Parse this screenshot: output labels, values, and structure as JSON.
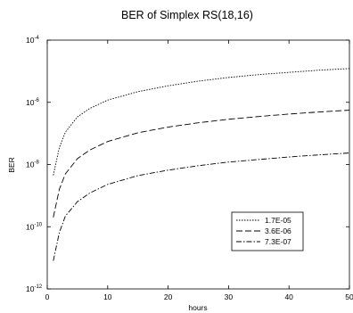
{
  "chart_data": {
    "type": "line",
    "title": "BER of Simplex RS(18,16)",
    "xlabel": "hours",
    "ylabel": "BER",
    "xlim": [
      0,
      50
    ],
    "ylim_exp": [
      -12,
      -4
    ],
    "y_scale": "log",
    "grid": false,
    "legend_position": "lower-right",
    "x_ticks": [
      "0",
      "10",
      "20",
      "30",
      "40",
      "50"
    ],
    "y_ticks": [
      {
        "base": "10",
        "exp": "-12"
      },
      {
        "base": "10",
        "exp": "-10"
      },
      {
        "base": "10",
        "exp": "-8"
      },
      {
        "base": "10",
        "exp": "-6"
      },
      {
        "base": "10",
        "exp": "-4"
      }
    ],
    "x": [
      1,
      2,
      3,
      5,
      7,
      10,
      15,
      20,
      25,
      30,
      35,
      40,
      45,
      50
    ],
    "series": [
      {
        "name": "1.7E-05",
        "dash": "1.5,1.5",
        "values": [
          4.5e-09,
          3.5e-08,
          1.1e-07,
          3.4e-07,
          6.3e-07,
          1.18e-06,
          2.2e-06,
          3.4e-06,
          4.8e-06,
          6.3e-06,
          7.8e-06,
          9.2e-06,
          1.08e-05,
          1.22e-05
        ]
      },
      {
        "name": "3.6E-06",
        "dash": "7,3",
        "values": [
          2e-10,
          1.6e-09,
          5e-09,
          1.55e-08,
          2.9e-08,
          5.5e-08,
          1.05e-07,
          1.6e-07,
          2.2e-07,
          2.85e-07,
          3.5e-07,
          4.2e-07,
          4.9e-07,
          5.6e-07
        ]
      },
      {
        "name": "7.3E-07",
        "dash": "6,2,1.5,2",
        "values": [
          8e-12,
          6.5e-11,
          2.2e-10,
          6.4e-10,
          1.2e-09,
          2.3e-09,
          4.4e-09,
          6.6e-09,
          9.2e-09,
          1.2e-08,
          1.45e-08,
          1.75e-08,
          2.05e-08,
          2.35e-08
        ]
      }
    ]
  }
}
